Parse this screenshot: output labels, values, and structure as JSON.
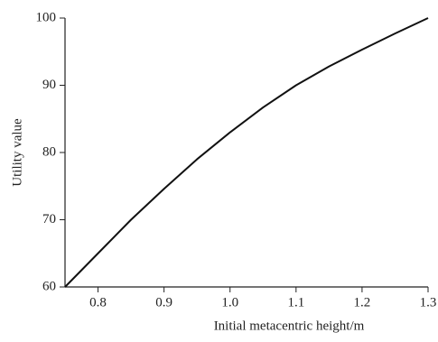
{
  "chart_data": {
    "type": "line",
    "x_label": "Initial metacentric height/m",
    "y_label": "Utility value",
    "x": [
      0.75,
      0.8,
      0.85,
      0.9,
      0.95,
      1.0,
      1.05,
      1.1,
      1.15,
      1.2,
      1.25,
      1.3
    ],
    "series": [
      {
        "color": "#111111",
        "values": [
          60,
          65,
          70,
          74.6,
          79,
          83,
          86.7,
          90,
          92.8,
          95.3,
          97.7,
          100
        ]
      }
    ],
    "xlim": [
      0.75,
      1.3
    ],
    "ylim": [
      60,
      100
    ],
    "xticks": [
      0.8,
      0.9,
      {
        "value": 1.0,
        "label": "1.0"
      },
      1.1,
      1.2,
      1.3
    ],
    "yticks": [
      60,
      70,
      80,
      90,
      100
    ]
  }
}
